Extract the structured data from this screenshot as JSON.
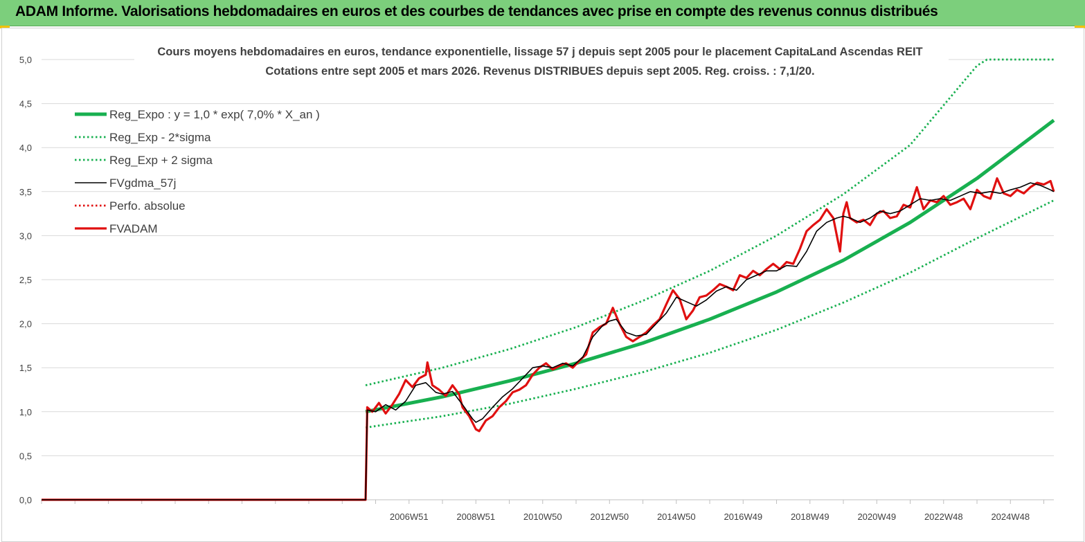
{
  "page": {
    "title": "ADAM Informe. Valorisations hebdomadaires en euros et des courbes de tendances avec prise en compte des revenus connus distribués"
  },
  "colors": {
    "banner": "#7ccf7c",
    "accent": "#f2c200",
    "trend": "#18b050",
    "band": "#18b050",
    "smooth": "#000000",
    "perf": "#e01010",
    "fvadam": "#e01010",
    "grid": "#d9d9d9"
  },
  "chart_data": {
    "type": "line",
    "title": "Cours moyens hebdomadaires en euros, tendance exponentielle, lissage 57 j depuis sept 2005 pour le placement CapitaLand Ascendas REIT",
    "subtitle": "Cotations entre sept 2005 et mars 2026. Revenus DISTRIBUES depuis sept 2005. Reg. croiss. : 7,1/20.",
    "xlabel": "",
    "ylabel": "",
    "ylim": [
      0,
      5
    ],
    "y_ticks": [
      "0,0",
      "0,5",
      "1,0",
      "1,5",
      "2,0",
      "2,5",
      "3,0",
      "3,5",
      "4,0",
      "4,5",
      "5,0"
    ],
    "x_range": [
      1996.0,
      2026.3
    ],
    "x_ticks": [
      {
        "label": "2006W51",
        "x": 2007.0
      },
      {
        "label": "2008W51",
        "x": 2009.0
      },
      {
        "label": "2010W50",
        "x": 2011.0
      },
      {
        "label": "2012W50",
        "x": 2013.0
      },
      {
        "label": "2014W50",
        "x": 2015.0
      },
      {
        "label": "2016W49",
        "x": 2017.0
      },
      {
        "label": "2018W49",
        "x": 2019.0
      },
      {
        "label": "2020W49",
        "x": 2021.0
      },
      {
        "label": "2022W48",
        "x": 2023.0
      },
      {
        "label": "2024W48",
        "x": 2025.0
      }
    ],
    "grid": true,
    "legend_position": "top-left",
    "start_year": 2005.7,
    "series": [
      {
        "name": "Reg_Expo : y = 1,0 * exp( 7,0% *  X_an )",
        "style": "thick-solid",
        "color": "#18b050",
        "x": [
          2005.7,
          2008,
          2010,
          2012,
          2014,
          2016,
          2018,
          2020,
          2022,
          2024,
          2026.3
        ],
        "y": [
          1.0,
          1.17,
          1.35,
          1.55,
          1.78,
          2.05,
          2.36,
          2.72,
          3.15,
          3.65,
          4.31
        ]
      },
      {
        "name": "Reg_Exp - 2*sigma",
        "style": "dotted",
        "color": "#18b050",
        "x": [
          2005.7,
          2008,
          2010,
          2012,
          2014,
          2016,
          2018,
          2020,
          2022,
          2024,
          2026.3
        ],
        "y": [
          0.82,
          0.95,
          1.09,
          1.26,
          1.45,
          1.67,
          1.93,
          2.24,
          2.58,
          2.97,
          3.4
        ]
      },
      {
        "name": "Reg_Exp + 2 sigma",
        "style": "dotted",
        "color": "#18b050",
        "x": [
          2005.7,
          2008,
          2010,
          2012,
          2014,
          2016,
          2018,
          2020,
          2022,
          2024,
          2024.3,
          2026.3
        ],
        "y": [
          1.3,
          1.5,
          1.71,
          1.96,
          2.26,
          2.6,
          3.0,
          3.47,
          4.03,
          4.93,
          5.0,
          5.0
        ]
      },
      {
        "name": "FVgdma_57j",
        "style": "thin-solid",
        "color": "#000000",
        "x": [
          1996.0,
          2005.7,
          2005.75,
          2006.0,
          2006.3,
          2006.6,
          2006.9,
          2007.2,
          2007.5,
          2007.8,
          2008.0,
          2008.3,
          2008.6,
          2008.9,
          2009.0,
          2009.2,
          2009.5,
          2009.8,
          2010.1,
          2010.4,
          2010.7,
          2011.0,
          2011.3,
          2011.6,
          2011.9,
          2012.2,
          2012.5,
          2012.8,
          2013.0,
          2013.2,
          2013.5,
          2013.8,
          2014.1,
          2014.4,
          2014.7,
          2015.0,
          2015.3,
          2015.6,
          2015.9,
          2016.2,
          2016.5,
          2016.8,
          2017.1,
          2017.4,
          2017.7,
          2018.0,
          2018.3,
          2018.6,
          2018.9,
          2019.2,
          2019.5,
          2019.8,
          2020.0,
          2020.2,
          2020.5,
          2020.8,
          2021.1,
          2021.4,
          2021.7,
          2022.0,
          2022.3,
          2022.6,
          2022.9,
          2023.2,
          2023.5,
          2023.8,
          2024.1,
          2024.4,
          2024.7,
          2025.0,
          2025.3,
          2025.6,
          2025.9,
          2026.2,
          2026.3
        ],
        "y": [
          0.0,
          0.0,
          1.02,
          1.0,
          1.08,
          1.02,
          1.12,
          1.3,
          1.33,
          1.22,
          1.2,
          1.23,
          1.08,
          0.92,
          0.88,
          0.92,
          1.05,
          1.17,
          1.26,
          1.38,
          1.5,
          1.52,
          1.5,
          1.55,
          1.52,
          1.62,
          1.85,
          1.98,
          2.03,
          2.05,
          1.9,
          1.86,
          1.88,
          2.0,
          2.12,
          2.3,
          2.25,
          2.2,
          2.27,
          2.37,
          2.42,
          2.38,
          2.5,
          2.55,
          2.6,
          2.6,
          2.66,
          2.65,
          2.82,
          3.05,
          3.15,
          3.2,
          3.22,
          3.2,
          3.15,
          3.2,
          3.28,
          3.25,
          3.28,
          3.35,
          3.42,
          3.4,
          3.42,
          3.4,
          3.45,
          3.5,
          3.48,
          3.5,
          3.48,
          3.52,
          3.55,
          3.6,
          3.57,
          3.52,
          3.5
        ]
      },
      {
        "name": "Perfo. absolue",
        "style": "dotted",
        "color": "#e01010",
        "x": [
          1996.0,
          2005.7
        ],
        "y": [
          0.0,
          0.0
        ]
      },
      {
        "name": "FVADAM",
        "style": "thick-solid",
        "color": "#e01010",
        "x": [
          1996.0,
          2005.7,
          2005.75,
          2005.9,
          2006.1,
          2006.3,
          2006.5,
          2006.7,
          2006.9,
          2007.1,
          2007.3,
          2007.5,
          2007.55,
          2007.7,
          2007.9,
          2008.1,
          2008.3,
          2008.5,
          2008.6,
          2008.8,
          2009.0,
          2009.1,
          2009.3,
          2009.5,
          2009.7,
          2009.9,
          2010.1,
          2010.3,
          2010.5,
          2010.7,
          2010.9,
          2011.1,
          2011.3,
          2011.5,
          2011.7,
          2011.9,
          2012.1,
          2012.3,
          2012.5,
          2012.7,
          2012.9,
          2013.1,
          2013.3,
          2013.5,
          2013.7,
          2013.9,
          2014.1,
          2014.3,
          2014.5,
          2014.7,
          2014.9,
          2015.1,
          2015.3,
          2015.5,
          2015.7,
          2015.9,
          2016.1,
          2016.3,
          2016.5,
          2016.7,
          2016.9,
          2017.1,
          2017.3,
          2017.5,
          2017.7,
          2017.9,
          2018.1,
          2018.3,
          2018.5,
          2018.7,
          2018.9,
          2019.1,
          2019.3,
          2019.5,
          2019.7,
          2019.9,
          2020.0,
          2020.1,
          2020.2,
          2020.4,
          2020.6,
          2020.8,
          2021.0,
          2021.2,
          2021.4,
          2021.6,
          2021.8,
          2022.0,
          2022.2,
          2022.4,
          2022.6,
          2022.8,
          2023.0,
          2023.2,
          2023.4,
          2023.6,
          2023.8,
          2024.0,
          2024.2,
          2024.4,
          2024.6,
          2024.8,
          2025.0,
          2025.2,
          2025.4,
          2025.6,
          2025.8,
          2026.0,
          2026.2,
          2026.3
        ],
        "y": [
          0.0,
          0.0,
          1.05,
          1.0,
          1.1,
          0.98,
          1.08,
          1.2,
          1.36,
          1.28,
          1.38,
          1.42,
          1.56,
          1.3,
          1.25,
          1.18,
          1.3,
          1.2,
          1.05,
          0.95,
          0.8,
          0.78,
          0.9,
          0.95,
          1.05,
          1.12,
          1.22,
          1.25,
          1.3,
          1.42,
          1.5,
          1.55,
          1.48,
          1.52,
          1.55,
          1.5,
          1.58,
          1.65,
          1.9,
          1.96,
          2.0,
          2.18,
          2.0,
          1.85,
          1.8,
          1.85,
          1.9,
          1.98,
          2.05,
          2.22,
          2.38,
          2.28,
          2.05,
          2.15,
          2.3,
          2.32,
          2.38,
          2.45,
          2.42,
          2.38,
          2.55,
          2.52,
          2.6,
          2.55,
          2.62,
          2.68,
          2.62,
          2.7,
          2.68,
          2.85,
          3.05,
          3.12,
          3.18,
          3.3,
          3.2,
          2.82,
          3.25,
          3.38,
          3.2,
          3.15,
          3.18,
          3.12,
          3.25,
          3.28,
          3.2,
          3.22,
          3.35,
          3.32,
          3.55,
          3.3,
          3.4,
          3.38,
          3.45,
          3.35,
          3.38,
          3.42,
          3.3,
          3.52,
          3.45,
          3.42,
          3.65,
          3.48,
          3.45,
          3.52,
          3.48,
          3.55,
          3.6,
          3.58,
          3.62,
          3.5
        ]
      }
    ]
  }
}
